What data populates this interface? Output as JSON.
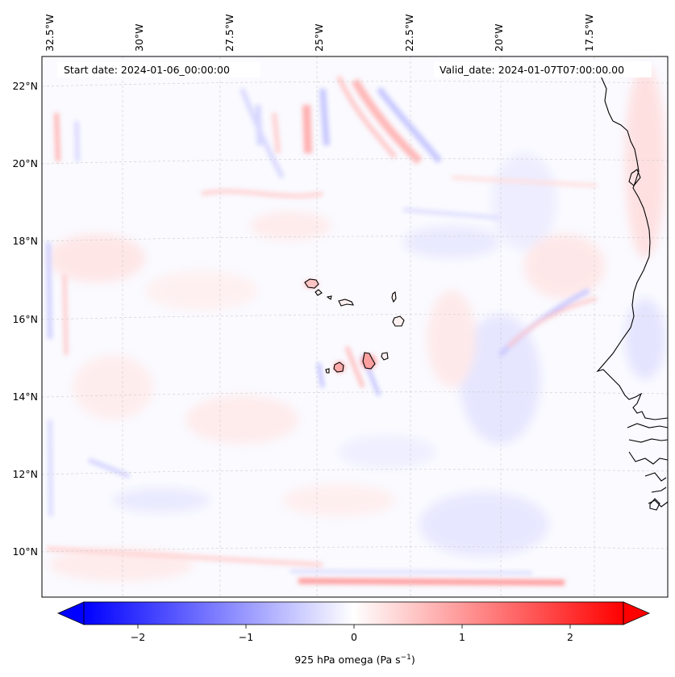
{
  "map": {
    "start_date": "Start date: 2024-01-06_00:00:00",
    "valid_date": "Valid_date: 2024-01-07T07:00:00.00",
    "lon_labels": [
      "32.5°W",
      "30°W",
      "27.5°W",
      "25°W",
      "22.5°W",
      "20°W",
      "17.5°W"
    ],
    "lat_labels": [
      "22°N",
      "20°N",
      "18°N",
      "16°N",
      "14°N",
      "12°N",
      "10°N"
    ],
    "gridlines": true,
    "colormap": "bwr",
    "colors": {
      "low": "#0000ff",
      "mid": "#ffffff",
      "high": "#ff0000"
    }
  },
  "colorbar": {
    "ticks": [
      "−2",
      "−1",
      "0",
      "1",
      "2"
    ],
    "range": [
      -2.6,
      2.6
    ],
    "extend": "both",
    "label_main": "925 hPa omega (Pa s",
    "label_sup": "−1",
    "label_close": ")"
  }
}
